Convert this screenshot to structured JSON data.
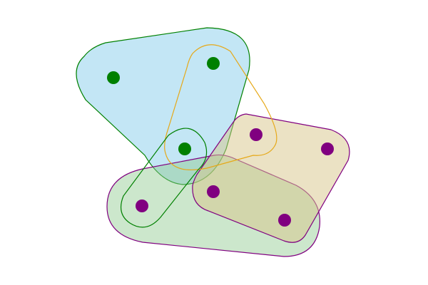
{
  "diagram": {
    "type": "hypergraph",
    "colors": {
      "blue_fill": "#87ceeb",
      "green_fill": "#8fc98f",
      "tan_fill": "#d8c58a",
      "green_node": "#008000",
      "purple_node": "#800080",
      "orange_edge": "#e6a817"
    },
    "nodes": [
      {
        "id": "n1",
        "color": "green"
      },
      {
        "id": "n2",
        "color": "green"
      },
      {
        "id": "n3",
        "color": "green"
      },
      {
        "id": "n4",
        "color": "purple"
      },
      {
        "id": "n5",
        "color": "purple"
      },
      {
        "id": "n6",
        "color": "purple"
      },
      {
        "id": "n7",
        "color": "purple"
      },
      {
        "id": "n8",
        "color": "purple"
      }
    ],
    "hyperedges": [
      {
        "id": "e-blue",
        "members": [
          "n1",
          "n2",
          "n3"
        ],
        "fill": "blue",
        "stroke": "green"
      },
      {
        "id": "e-orange",
        "members": [
          "n2",
          "n3"
        ],
        "fill": "none",
        "stroke": "orange"
      },
      {
        "id": "e-green-small",
        "members": [
          "n3",
          "n7"
        ],
        "fill": "none",
        "stroke": "green"
      },
      {
        "id": "e-green-large",
        "members": [
          "n3",
          "n6",
          "n7",
          "n8"
        ],
        "fill": "green",
        "stroke": "purple"
      },
      {
        "id": "e-tan",
        "members": [
          "n4",
          "n5",
          "n6",
          "n8"
        ],
        "fill": "tan",
        "stroke": "purple"
      }
    ]
  }
}
